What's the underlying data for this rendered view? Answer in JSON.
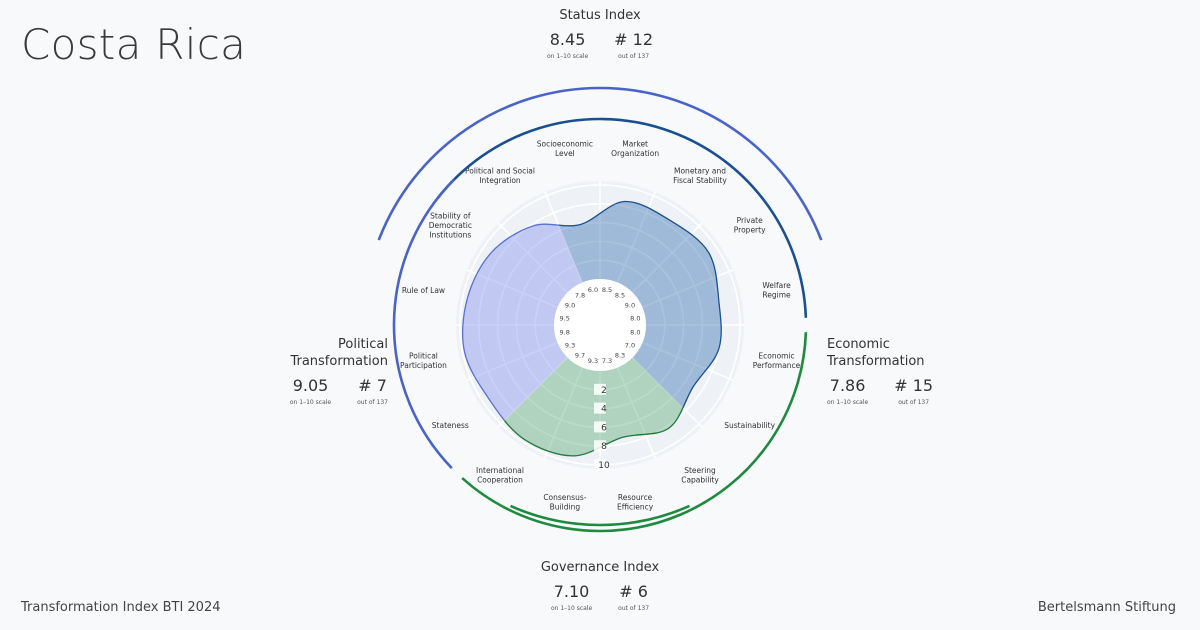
{
  "country": "Costa Rica",
  "footer": {
    "left": "Transformation Index BTI 2024",
    "right": "Bertelsmann Stiftung"
  },
  "colors": {
    "political": "#8a99f0",
    "economic": "#1f5fa8",
    "governance": "#3a9a5b",
    "status_arc": "#4a63c7",
    "gov_arc": "#1f8a3f"
  },
  "indices": {
    "status": {
      "title": "Status Index",
      "score": "8.45",
      "score_note": "on 1–10 scale",
      "rank": "# 12",
      "rank_note": "out of 137"
    },
    "political": {
      "title": "Political Transformation",
      "score": "9.05",
      "score_note": "on 1–10 scale",
      "rank": "# 7",
      "rank_note": "out of 137"
    },
    "economic": {
      "title": "Economic Transformation",
      "score": "7.86",
      "score_note": "on 1–10 scale",
      "rank": "# 15",
      "rank_note": "out of 137"
    },
    "governance": {
      "title": "Governance Index",
      "score": "7.10",
      "score_note": "on 1–10 scale",
      "rank": "# 6",
      "rank_note": "out of 137"
    }
  },
  "chart_data": {
    "type": "radar",
    "scale": [
      0,
      10
    ],
    "radial_ticks": [
      "2",
      "4",
      "6",
      "8",
      "10"
    ],
    "categories": [
      {
        "label": [
          "Market",
          "Organization"
        ],
        "value": 8.5,
        "value_label": "8.5",
        "group": "economic"
      },
      {
        "label": [
          "Monetary and",
          "Fiscal Stability"
        ],
        "value": 8.5,
        "value_label": "8.5",
        "group": "economic"
      },
      {
        "label": [
          "Private",
          "Property"
        ],
        "value": 9.0,
        "value_label": "9.0",
        "group": "economic"
      },
      {
        "label": [
          "Welfare",
          "Regime"
        ],
        "value": 8.0,
        "value_label": "8.0",
        "group": "economic"
      },
      {
        "label": [
          "Economic",
          "Performance"
        ],
        "value": 8.0,
        "value_label": "8.0",
        "group": "economic"
      },
      {
        "label": [
          "Sustainability"
        ],
        "value": 7.0,
        "value_label": "7.0",
        "group": "economic"
      },
      {
        "label": [
          "Steering",
          "Capability"
        ],
        "value": 8.3,
        "value_label": "8.3",
        "group": "governance"
      },
      {
        "label": [
          "Resource",
          "Efficiency"
        ],
        "value": 7.3,
        "value_label": "7.3",
        "group": "governance"
      },
      {
        "label": [
          "Consensus-",
          "Building"
        ],
        "value": 9.3,
        "value_label": "9.3",
        "group": "governance"
      },
      {
        "label": [
          "International",
          "Cooperation"
        ],
        "value": 9.7,
        "value_label": "9.7",
        "group": "governance"
      },
      {
        "label": [
          "Stateness"
        ],
        "value": 9.3,
        "value_label": "9.3",
        "group": "political"
      },
      {
        "label": [
          "Political",
          "Participation"
        ],
        "value": 9.8,
        "value_label": "9.8",
        "group": "political"
      },
      {
        "label": [
          "Rule of Law"
        ],
        "value": 9.5,
        "value_label": "9.5",
        "group": "political"
      },
      {
        "label": [
          "Stability of",
          "Democratic",
          "Institutions"
        ],
        "value": 9.0,
        "value_label": "9.0",
        "group": "political"
      },
      {
        "label": [
          "Political and Social",
          "Integration"
        ],
        "value": 7.8,
        "value_label": "7.8",
        "group": "political"
      },
      {
        "label": [
          "Socioeconomic",
          "Level"
        ],
        "value": 6.0,
        "value_label": "6.0",
        "group": "economic"
      }
    ]
  }
}
